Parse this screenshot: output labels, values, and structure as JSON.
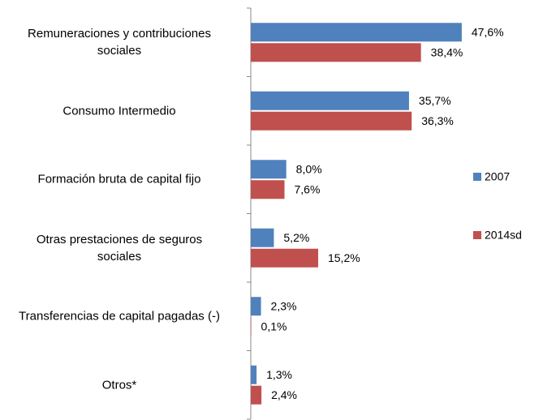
{
  "chart_data": {
    "type": "bar",
    "orientation": "horizontal",
    "categories": [
      "Remuneraciones y contribuciones\nsociales",
      "Consumo Intermedio",
      "Formación bruta de capital fijo",
      "Otras prestaciones de seguros\nsociales",
      "Transferencias de capital pagadas (-)",
      "Otros*"
    ],
    "series": [
      {
        "name": "2007",
        "color": "#4f81bd",
        "values": [
          47.6,
          35.7,
          8.0,
          5.2,
          2.3,
          1.3
        ],
        "value_labels": [
          "47,6%",
          "35,7%",
          "8,0%",
          "5,2%",
          "2,3%",
          "1,3%"
        ]
      },
      {
        "name": "2014sd",
        "color": "#c0504d",
        "values": [
          38.4,
          36.3,
          7.6,
          15.2,
          0.1,
          2.4
        ],
        "value_labels": [
          "38,4%",
          "36,3%",
          "7,6%",
          "15,2%",
          "0,1%",
          "2,4%"
        ]
      }
    ],
    "legend": "right"
  }
}
